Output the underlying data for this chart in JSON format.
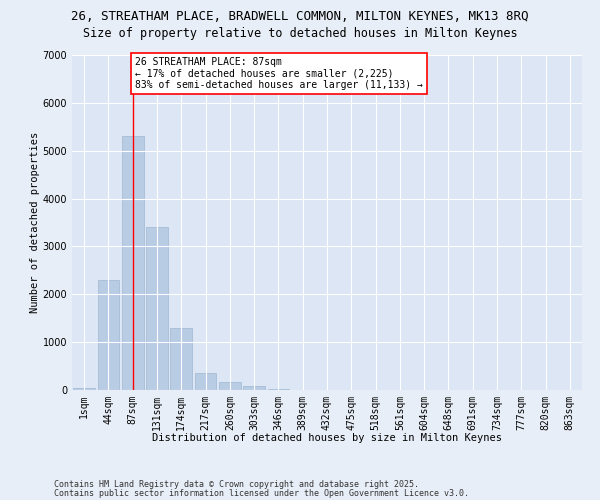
{
  "title_line1": "26, STREATHAM PLACE, BRADWELL COMMON, MILTON KEYNES, MK13 8RQ",
  "title_line2": "Size of property relative to detached houses in Milton Keynes",
  "xlabel": "Distribution of detached houses by size in Milton Keynes",
  "ylabel": "Number of detached properties",
  "categories": [
    "1sqm",
    "44sqm",
    "87sqm",
    "131sqm",
    "174sqm",
    "217sqm",
    "260sqm",
    "303sqm",
    "346sqm",
    "389sqm",
    "432sqm",
    "475sqm",
    "518sqm",
    "561sqm",
    "604sqm",
    "648sqm",
    "691sqm",
    "734sqm",
    "777sqm",
    "820sqm",
    "863sqm"
  ],
  "values": [
    50,
    2300,
    5300,
    3400,
    1300,
    350,
    175,
    80,
    30,
    8,
    3,
    1,
    0,
    0,
    0,
    0,
    0,
    0,
    0,
    0,
    0
  ],
  "bar_color": "#b8cce4",
  "bar_edge_color": "#9db8d2",
  "vline_x_index": 2,
  "vline_color": "red",
  "annotation_text": "26 STREATHAM PLACE: 87sqm\n← 17% of detached houses are smaller (2,225)\n83% of semi-detached houses are larger (11,133) →",
  "annotation_box_color": "white",
  "annotation_box_edge_color": "red",
  "ylim": [
    0,
    7000
  ],
  "yticks": [
    0,
    1000,
    2000,
    3000,
    4000,
    5000,
    6000,
    7000
  ],
  "background_color": "#e8eef7",
  "plot_bg_color": "#dce6f5",
  "grid_color": "white",
  "footer_line1": "Contains HM Land Registry data © Crown copyright and database right 2025.",
  "footer_line2": "Contains public sector information licensed under the Open Government Licence v3.0.",
  "title_fontsize": 9,
  "subtitle_fontsize": 8.5,
  "axis_label_fontsize": 7.5,
  "tick_fontsize": 7,
  "annotation_fontsize": 7,
  "footer_fontsize": 6
}
